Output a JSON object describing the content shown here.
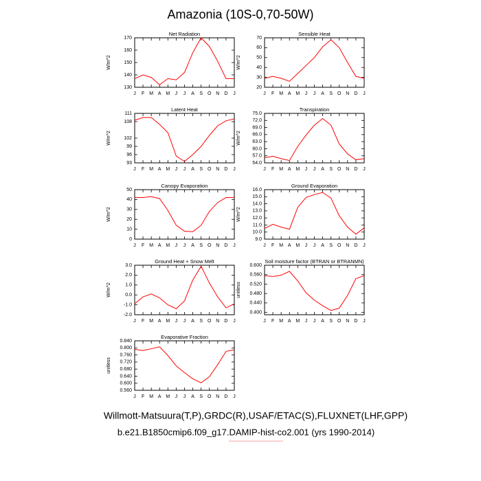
{
  "title": "Amazonia (10S-0,70-50W)",
  "chart_data": [
    {
      "type": "line",
      "title": "Net Radiation",
      "ylabel": "W/m^2",
      "color": "#ff0000",
      "categories": [
        "J",
        "F",
        "M",
        "A",
        "M",
        "J",
        "J",
        "A",
        "S",
        "O",
        "N",
        "D",
        "J"
      ],
      "values": [
        137,
        140,
        138,
        132,
        137,
        136,
        142,
        158,
        170,
        163,
        151,
        137,
        137
      ],
      "ylim": [
        130,
        170
      ],
      "yticks": [
        130,
        140,
        150,
        160,
        170
      ]
    },
    {
      "type": "line",
      "title": "Sensible Heat",
      "ylabel": "W/m^2",
      "color": "#ff0000",
      "categories": [
        "J",
        "F",
        "M",
        "A",
        "M",
        "J",
        "J",
        "A",
        "S",
        "O",
        "N",
        "D",
        "J"
      ],
      "values": [
        29,
        31,
        29,
        26,
        34,
        42,
        50,
        61,
        68,
        60,
        45,
        31,
        29
      ],
      "ylim": [
        20,
        70
      ],
      "yticks": [
        20,
        30,
        40,
        50,
        60,
        70
      ]
    },
    {
      "type": "line",
      "title": "Latent Heat",
      "ylabel": "W/m^2",
      "color": "#ff0000",
      "categories": [
        "J",
        "F",
        "M",
        "A",
        "M",
        "J",
        "J",
        "A",
        "S",
        "O",
        "N",
        "D",
        "J"
      ],
      "values": [
        108.5,
        109.5,
        109.5,
        107,
        104,
        95.5,
        93.5,
        96,
        99,
        103,
        106.5,
        108.3,
        109
      ],
      "ylim": [
        93,
        111
      ],
      "yticks": [
        93,
        96,
        99,
        102,
        108,
        111
      ]
    },
    {
      "type": "line",
      "title": "Transpiration",
      "ylabel": "W/m^2",
      "color": "#ff0000",
      "categories": [
        "J",
        "F",
        "M",
        "A",
        "M",
        "J",
        "J",
        "A",
        "S",
        "O",
        "N",
        "D",
        "J"
      ],
      "values": [
        56.2,
        56.8,
        55.8,
        55,
        61,
        65.8,
        70,
        72.8,
        70,
        62,
        57.8,
        55.3,
        55.8
      ],
      "ylim": [
        54,
        75
      ],
      "yticks": [
        {
          "value": 54,
          "label": "54.0"
        },
        {
          "value": 57,
          "label": "57.0"
        },
        {
          "value": 60,
          "label": "60.0"
        },
        {
          "value": 63,
          "label": "63.0"
        },
        {
          "value": 66,
          "label": "66.0"
        },
        {
          "value": 69,
          "label": "69.0"
        },
        {
          "value": 72,
          "label": "72.0"
        },
        {
          "value": 75,
          "label": "75.0"
        }
      ]
    },
    {
      "type": "line",
      "title": "Canopy Evaporation",
      "ylabel": "W/m^2",
      "color": "#ff0000",
      "categories": [
        "J",
        "F",
        "M",
        "A",
        "M",
        "J",
        "J",
        "A",
        "S",
        "O",
        "N",
        "D",
        "J"
      ],
      "values": [
        42,
        42,
        43,
        41,
        29,
        14,
        8,
        7.5,
        14,
        28,
        37,
        42,
        42
      ],
      "ylim": [
        0,
        50
      ],
      "yticks": [
        0,
        10,
        20,
        30,
        40,
        50
      ]
    },
    {
      "type": "line",
      "title": "Ground Evaporation",
      "ylabel": "W/m^2",
      "color": "#ff0000",
      "categories": [
        "J",
        "F",
        "M",
        "A",
        "M",
        "J",
        "J",
        "A",
        "S",
        "O",
        "N",
        "D",
        "J"
      ],
      "values": [
        10.5,
        11.1,
        10.7,
        10.4,
        13.5,
        14.9,
        15.3,
        15.6,
        14.8,
        12.3,
        10.7,
        9.7,
        10.6
      ],
      "ylim": [
        9,
        16
      ],
      "yticks": [
        {
          "value": 9,
          "label": "9.0"
        },
        {
          "value": 10,
          "label": "10.0"
        },
        {
          "value": 11,
          "label": "11.0"
        },
        {
          "value": 12,
          "label": "12.0"
        },
        {
          "value": 13,
          "label": "13.0"
        },
        {
          "value": 14,
          "label": "14.0"
        },
        {
          "value": 15,
          "label": "15.0"
        },
        {
          "value": 16,
          "label": "16.0"
        }
      ]
    },
    {
      "type": "line",
      "title": "Ground Heat + Snow Melt",
      "ylabel": "W/m^2",
      "color": "#ff0000",
      "categories": [
        "J",
        "F",
        "M",
        "A",
        "M",
        "J",
        "J",
        "A",
        "S",
        "O",
        "N",
        "D",
        "J"
      ],
      "values": [
        -0.9,
        -0.2,
        0.1,
        -0.3,
        -1.0,
        -1.4,
        -0.6,
        1.5,
        2.9,
        1.2,
        -0.2,
        -1.3,
        -0.9
      ],
      "ylim": [
        -2,
        3
      ],
      "yticks": [
        {
          "value": -2,
          "label": "-2.0"
        },
        {
          "value": -1,
          "label": "-1.0"
        },
        {
          "value": 0,
          "label": "0.0"
        },
        {
          "value": 1,
          "label": "1.0"
        },
        {
          "value": 2,
          "label": "2.0"
        },
        {
          "value": 3,
          "label": "3.0"
        }
      ]
    },
    {
      "type": "line",
      "title": "Soil moisture factor (BTRAN or BTRANMN)",
      "ylabel": "unitless",
      "color": "#ff0000",
      "categories": [
        "J",
        "F",
        "M",
        "A",
        "M",
        "J",
        "J",
        "A",
        "S",
        "O",
        "N",
        "D",
        "J"
      ],
      "values": [
        0.556,
        0.552,
        0.558,
        0.574,
        0.533,
        0.483,
        0.452,
        0.428,
        0.408,
        0.418,
        0.472,
        0.543,
        0.556
      ],
      "ylim": [
        0.39,
        0.6
      ],
      "yticks": [
        {
          "value": 0.4,
          "label": "0.400"
        },
        {
          "value": 0.44,
          "label": "0.440"
        },
        {
          "value": 0.48,
          "label": "0.480"
        },
        {
          "value": 0.52,
          "label": "0.520"
        },
        {
          "value": 0.56,
          "label": "0.560"
        },
        {
          "value": 0.6,
          "label": "0.600"
        }
      ]
    },
    {
      "type": "line",
      "title": "Evaporative Fraction",
      "ylabel": "unitless",
      "color": "#ff0000",
      "categories": [
        "J",
        "F",
        "M",
        "A",
        "M",
        "J",
        "J",
        "A",
        "S",
        "O",
        "N",
        "D",
        "J"
      ],
      "values": [
        0.792,
        0.785,
        0.795,
        0.806,
        0.757,
        0.698,
        0.66,
        0.625,
        0.602,
        0.637,
        0.705,
        0.78,
        0.79
      ],
      "ylim": [
        0.56,
        0.84
      ],
      "yticks": [
        {
          "value": 0.56,
          "label": "0.560"
        },
        {
          "value": 0.6,
          "label": "0.600"
        },
        {
          "value": 0.64,
          "label": "0.640"
        },
        {
          "value": 0.68,
          "label": "0.680"
        },
        {
          "value": 0.72,
          "label": "0.720"
        },
        {
          "value": 0.76,
          "label": "0.760"
        },
        {
          "value": 0.8,
          "label": "0.800"
        },
        {
          "value": 0.84,
          "label": "0.840"
        }
      ]
    }
  ],
  "footer": [
    "Willmott-Matsuura(T,P),GRDC(R),USAF/ETAC(S),FLUXNET(LHF,GPP)",
    "b.e21.B1850cmip6.f09_g17.DAMIP-hist-co2.001 (yrs 1990-2014)"
  ]
}
